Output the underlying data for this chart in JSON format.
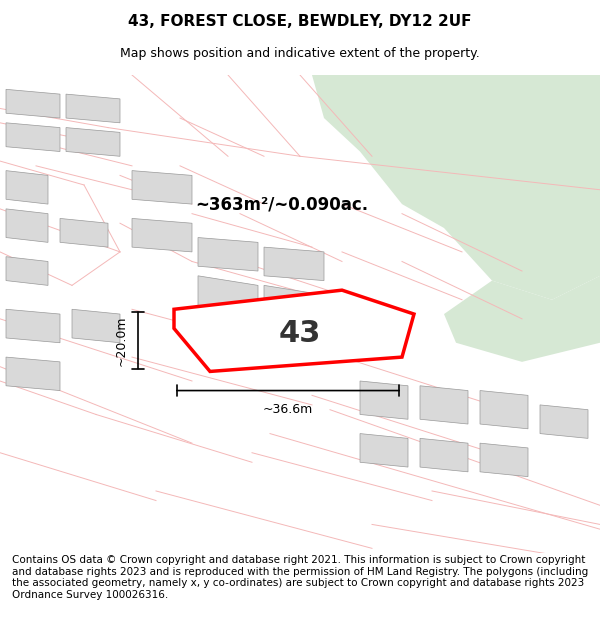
{
  "title": "43, FOREST CLOSE, BEWDLEY, DY12 2UF",
  "subtitle": "Map shows position and indicative extent of the property.",
  "footer": "Contains OS data © Crown copyright and database right 2021. This information is subject to Crown copyright and database rights 2023 and is reproduced with the permission of HM Land Registry. The polygons (including the associated geometry, namely x, y co-ordinates) are subject to Crown copyright and database rights 2023 Ordnance Survey 100026316.",
  "area_label": "~363m²/~0.090ac.",
  "label_number": "43",
  "dim_width": "~36.6m",
  "dim_height": "~20.0m",
  "bg_color": "#f5f5f5",
  "map_bg": "#ffffff",
  "green_area_color": "#d6e8d4",
  "building_color": "#d9d9d9",
  "road_color": "#ffffff",
  "plot_outline_color": "#ff0000",
  "plot_fill_color": "#ffffff",
  "cadastral_line_color": "#f4b8b8",
  "dark_line_color": "#c8c8c8",
  "title_fontsize": 11,
  "subtitle_fontsize": 9,
  "footer_fontsize": 7.5
}
